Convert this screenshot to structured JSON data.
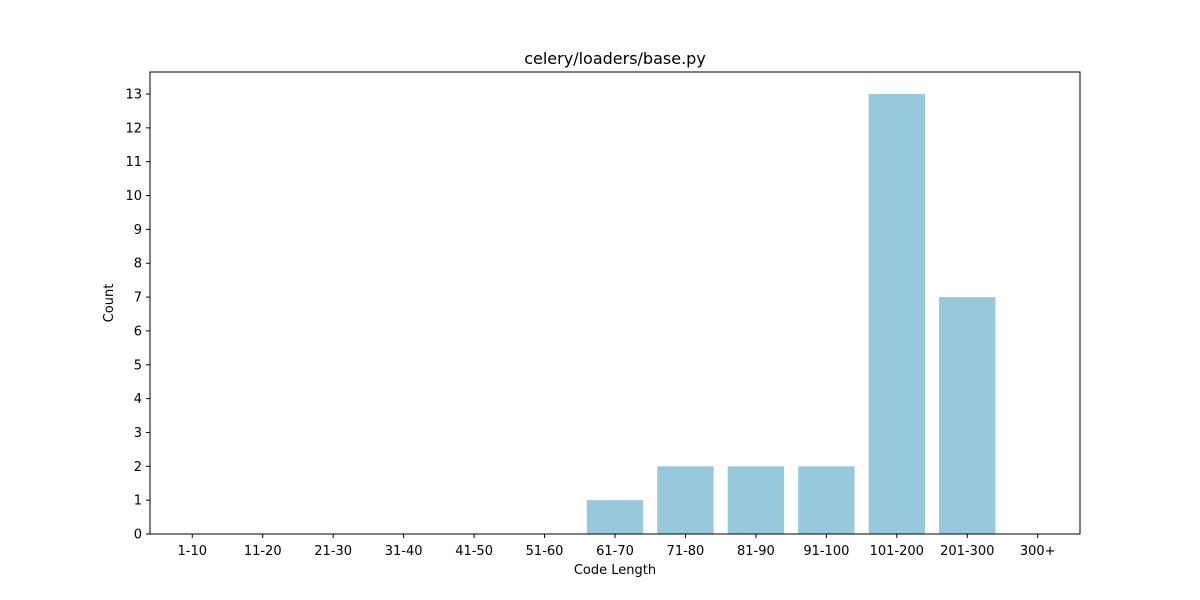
{
  "chart_data": {
    "type": "bar",
    "title": "celery/loaders/base.py",
    "xlabel": "Code Length",
    "ylabel": "Count",
    "categories": [
      "1-10",
      "11-20",
      "21-30",
      "31-40",
      "41-50",
      "51-60",
      "61-70",
      "71-80",
      "81-90",
      "91-100",
      "101-200",
      "201-300",
      "300+"
    ],
    "values": [
      0,
      0,
      0,
      0,
      0,
      0,
      1,
      2,
      2,
      2,
      13,
      7,
      0
    ],
    "ylim": [
      0,
      13.65
    ],
    "yticks": [
      0,
      1,
      2,
      3,
      4,
      5,
      6,
      7,
      8,
      9,
      10,
      11,
      12,
      13
    ],
    "grid": false,
    "bar_color": "#96c9dc",
    "axis_color": "#000000",
    "text_color": "#000000"
  }
}
